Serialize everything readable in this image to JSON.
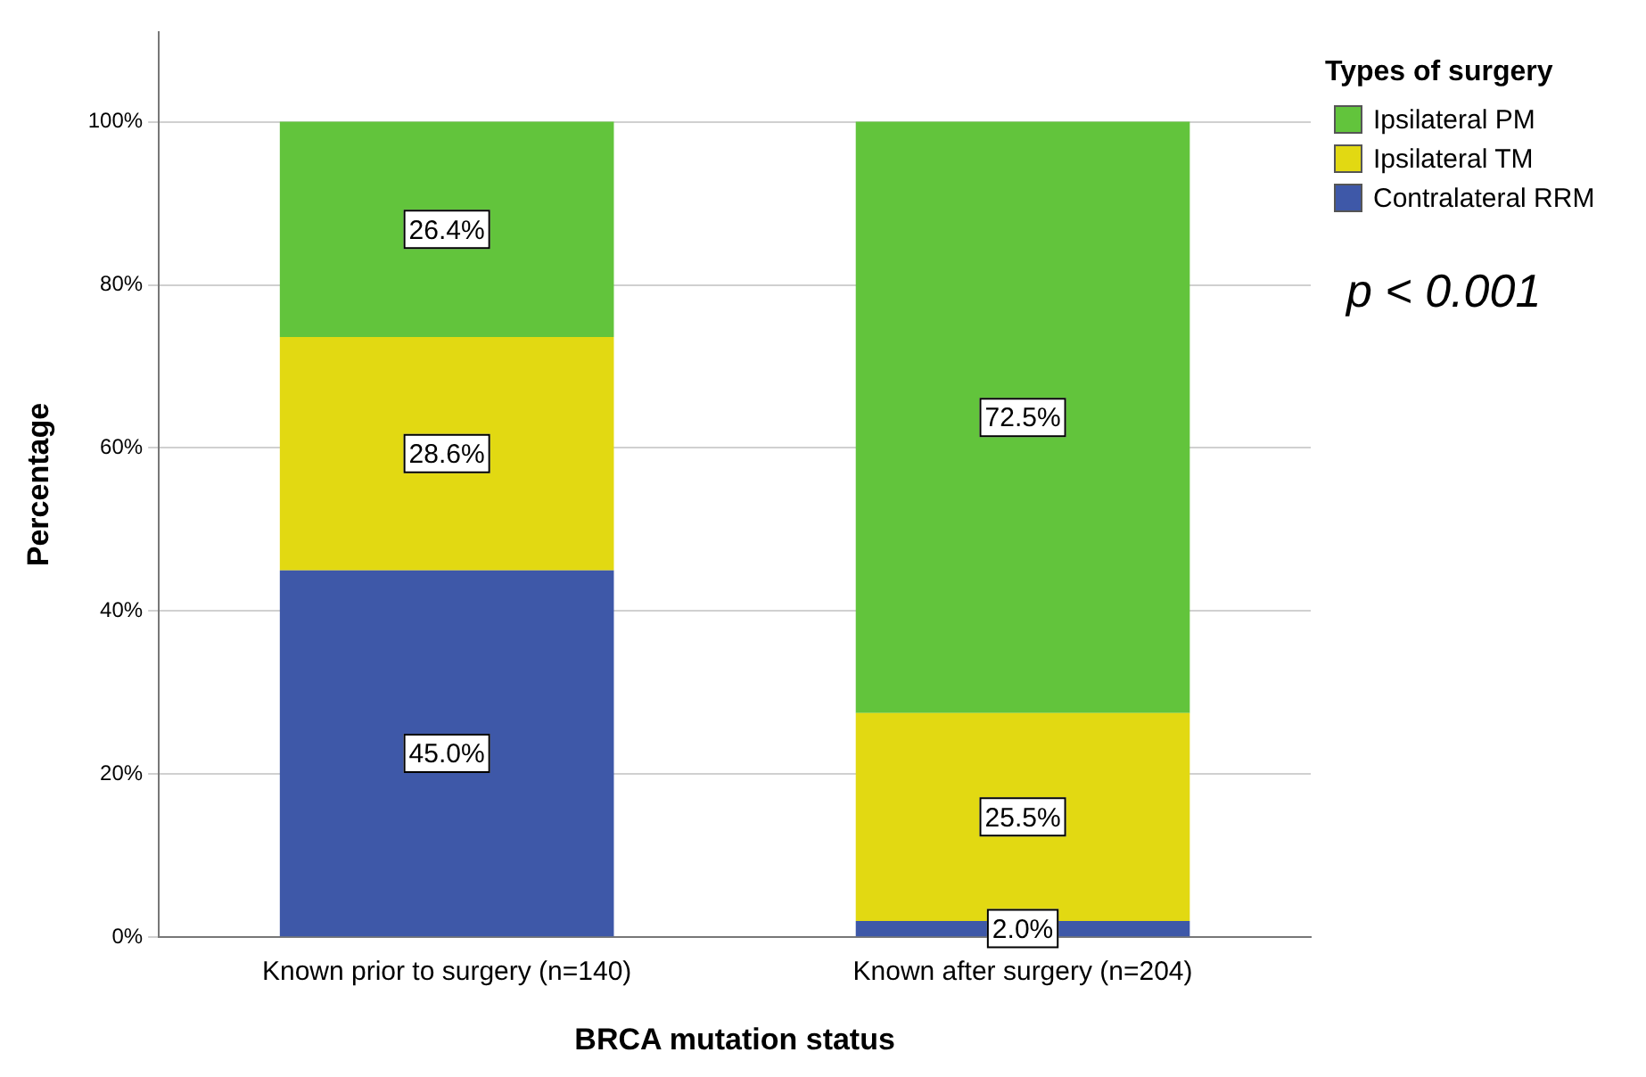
{
  "chart_data": {
    "type": "bar",
    "stacked": true,
    "xlabel": "BRCA mutation status",
    "ylabel": "Percentage",
    "legend_title": "Types of surgery",
    "legend": "top right",
    "grid": "y",
    "categories": [
      "Known prior to surgery (n=140)",
      "Known after surgery (n=204)"
    ],
    "series": [
      {
        "name": "Contralateral RRM",
        "color": "#3e58a8",
        "values": [
          45.0,
          2.0
        ],
        "value_labels": [
          "45.0%",
          "2.0%"
        ]
      },
      {
        "name": "Ipsilateral TM",
        "color": "#e2d912",
        "values": [
          28.6,
          25.5
        ],
        "value_labels": [
          "28.6%",
          "25.5%"
        ]
      },
      {
        "name": "Ipsilateral PM",
        "color": "#62c43c",
        "values": [
          26.4,
          72.5
        ],
        "value_labels": [
          "26.4%",
          "72.5%"
        ]
      }
    ],
    "ylim": [
      0,
      111
    ],
    "yticks": [
      {
        "value": 0,
        "label": "0%"
      },
      {
        "value": 20,
        "label": "20%"
      },
      {
        "value": 40,
        "label": "40%"
      },
      {
        "value": 60,
        "label": "60%"
      },
      {
        "value": 80,
        "label": "80%"
      },
      {
        "value": 100,
        "label": "100%"
      }
    ],
    "annotations": [
      "p < 0.001"
    ]
  }
}
